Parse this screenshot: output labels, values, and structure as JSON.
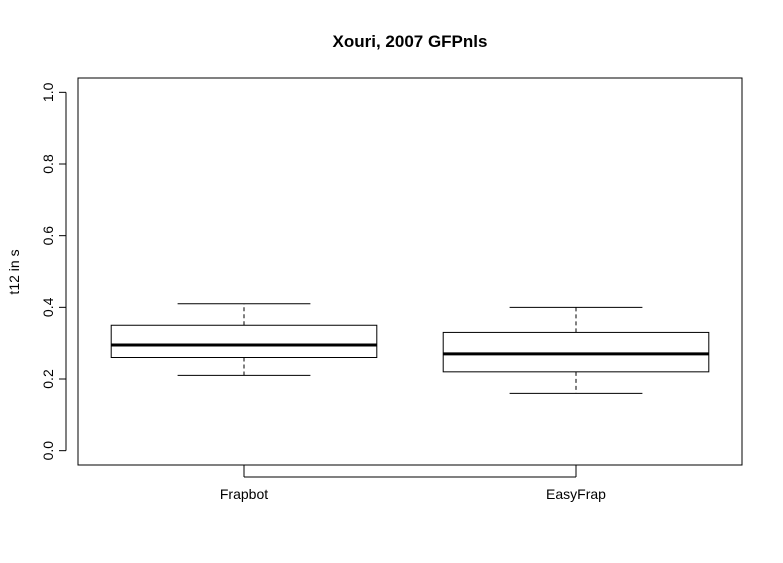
{
  "chart_data": {
    "type": "boxplot",
    "title": "Xouri, 2007 GFPnls",
    "xlabel": "",
    "ylabel": "t12 in s",
    "ylim": [
      -0.04,
      1.04
    ],
    "yticks": [
      "0.0",
      "0.2",
      "0.4",
      "0.6",
      "0.8",
      "1.0"
    ],
    "grid": false,
    "categories": [
      "Frapbot",
      "EasyFrap"
    ],
    "boxes": [
      {
        "name": "Frapbot",
        "whisker_low": 0.21,
        "q1": 0.26,
        "median": 0.295,
        "q3": 0.35,
        "whisker_high": 0.41
      },
      {
        "name": "EasyFrap",
        "whisker_low": 0.16,
        "q1": 0.22,
        "median": 0.27,
        "q3": 0.33,
        "whisker_high": 0.4
      }
    ]
  }
}
